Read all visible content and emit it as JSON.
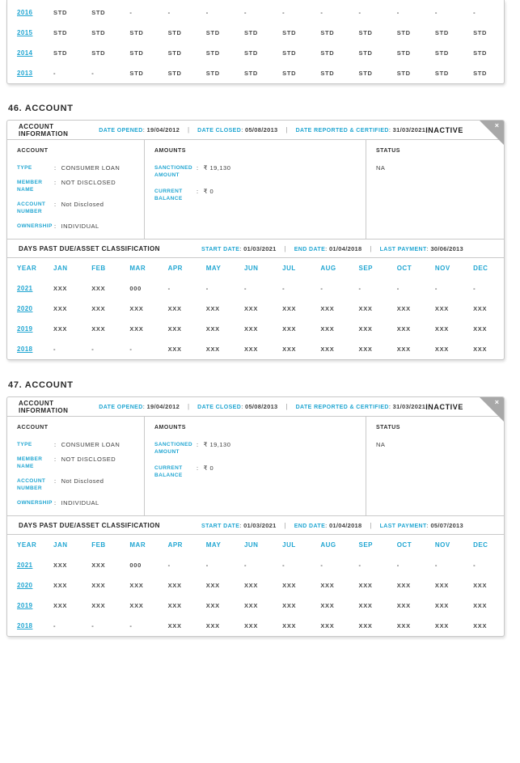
{
  "colors": {
    "accent": "#21a6d2",
    "text_dark": "#2b2b2b",
    "border": "#c9c9c9",
    "ribbon_gray": "#a8a8a8",
    "status_white": "#ffffff"
  },
  "labels": {
    "year_col": "YEAR"
  },
  "months": [
    "JAN",
    "FEB",
    "MAR",
    "APR",
    "MAY",
    "JUN",
    "JUL",
    "AUG",
    "SEP",
    "OCT",
    "NOV",
    "DEC"
  ],
  "history_table": {
    "rows": [
      {
        "year": "2016",
        "values": [
          "STD",
          "STD",
          "-",
          "-",
          "-",
          "-",
          "-",
          "-",
          "-",
          "-",
          "-",
          "-"
        ]
      },
      {
        "year": "2015",
        "values": [
          "STD",
          "STD",
          "STD",
          "STD",
          "STD",
          "STD",
          "STD",
          "STD",
          "STD",
          "STD",
          "STD",
          "STD"
        ]
      },
      {
        "year": "2014",
        "values": [
          "STD",
          "STD",
          "STD",
          "STD",
          "STD",
          "STD",
          "STD",
          "STD",
          "STD",
          "STD",
          "STD",
          "STD"
        ]
      },
      {
        "year": "2013",
        "values": [
          "-",
          "-",
          "STD",
          "STD",
          "STD",
          "STD",
          "STD",
          "STD",
          "STD",
          "STD",
          "STD",
          "STD"
        ]
      }
    ]
  },
  "accounts": [
    {
      "heading": "46. ACCOUNT",
      "info_title": "ACCOUNT INFORMATION",
      "status_badge": "INACTIVE",
      "close_icon": "×",
      "dates": [
        {
          "label": "DATE OPENED",
          "value": "19/04/2012"
        },
        {
          "label": "DATE CLOSED",
          "value": "05/08/2013"
        },
        {
          "label": "DATE REPORTED & CERTIFIED",
          "value": "31/03/2021"
        }
      ],
      "account_col": {
        "title": "ACCOUNT",
        "fields": [
          {
            "label": "TYPE",
            "value": "CONSUMER LOAN"
          },
          {
            "label": "MEMBER NAME",
            "value": "NOT DISCLOSED"
          },
          {
            "label": "ACCOUNT NUMBER",
            "value": "Not Disclosed"
          },
          {
            "label": "OWNERSHIP",
            "value": "INDIVIDUAL"
          }
        ]
      },
      "amounts_col": {
        "title": "AMOUNTS",
        "fields": [
          {
            "label": "SANCTIONED AMOUNT",
            "value": "₹ 19,130"
          },
          {
            "label": "CURRENT BALANCE",
            "value": "₹ 0"
          }
        ]
      },
      "status_col": {
        "title": "STATUS",
        "value": "NA"
      },
      "dpd": {
        "title": "DAYS PAST DUE/ASSET CLASSIFICATION",
        "dates": [
          {
            "label": "START DATE",
            "value": "01/03/2021"
          },
          {
            "label": "END DATE",
            "value": "01/04/2018"
          },
          {
            "label": "LAST PAYMENT",
            "value": "30/06/2013"
          }
        ],
        "rows": [
          {
            "year": "2021",
            "values": [
              "XXX",
              "XXX",
              "000",
              "-",
              "-",
              "-",
              "-",
              "-",
              "-",
              "-",
              "-",
              "-"
            ]
          },
          {
            "year": "2020",
            "values": [
              "XXX",
              "XXX",
              "XXX",
              "XXX",
              "XXX",
              "XXX",
              "XXX",
              "XXX",
              "XXX",
              "XXX",
              "XXX",
              "XXX"
            ]
          },
          {
            "year": "2019",
            "values": [
              "XXX",
              "XXX",
              "XXX",
              "XXX",
              "XXX",
              "XXX",
              "XXX",
              "XXX",
              "XXX",
              "XXX",
              "XXX",
              "XXX"
            ]
          },
          {
            "year": "2018",
            "values": [
              "-",
              "-",
              "-",
              "XXX",
              "XXX",
              "XXX",
              "XXX",
              "XXX",
              "XXX",
              "XXX",
              "XXX",
              "XXX"
            ]
          }
        ]
      }
    },
    {
      "heading": "47. ACCOUNT",
      "info_title": "ACCOUNT INFORMATION",
      "status_badge": "INACTIVE",
      "close_icon": "×",
      "dates": [
        {
          "label": "DATE OPENED",
          "value": "19/04/2012"
        },
        {
          "label": "DATE CLOSED",
          "value": "05/08/2013"
        },
        {
          "label": "DATE REPORTED & CERTIFIED",
          "value": "31/03/2021"
        }
      ],
      "account_col": {
        "title": "ACCOUNT",
        "fields": [
          {
            "label": "TYPE",
            "value": "CONSUMER LOAN"
          },
          {
            "label": "MEMBER NAME",
            "value": "NOT DISCLOSED"
          },
          {
            "label": "ACCOUNT NUMBER",
            "value": "Not Disclosed"
          },
          {
            "label": "OWNERSHIP",
            "value": "INDIVIDUAL"
          }
        ]
      },
      "amounts_col": {
        "title": "AMOUNTS",
        "fields": [
          {
            "label": "SANCTIONED AMOUNT",
            "value": "₹ 19,130"
          },
          {
            "label": "CURRENT BALANCE",
            "value": "₹ 0"
          }
        ]
      },
      "status_col": {
        "title": "STATUS",
        "value": "NA"
      },
      "dpd": {
        "title": "DAYS PAST DUE/ASSET CLASSIFICATION",
        "dates": [
          {
            "label": "START DATE",
            "value": "01/03/2021"
          },
          {
            "label": "END DATE",
            "value": "01/04/2018"
          },
          {
            "label": "LAST PAYMENT",
            "value": "05/07/2013"
          }
        ],
        "rows": [
          {
            "year": "2021",
            "values": [
              "XXX",
              "XXX",
              "000",
              "-",
              "-",
              "-",
              "-",
              "-",
              "-",
              "-",
              "-",
              "-"
            ]
          },
          {
            "year": "2020",
            "values": [
              "XXX",
              "XXX",
              "XXX",
              "XXX",
              "XXX",
              "XXX",
              "XXX",
              "XXX",
              "XXX",
              "XXX",
              "XXX",
              "XXX"
            ]
          },
          {
            "year": "2019",
            "values": [
              "XXX",
              "XXX",
              "XXX",
              "XXX",
              "XXX",
              "XXX",
              "XXX",
              "XXX",
              "XXX",
              "XXX",
              "XXX",
              "XXX"
            ]
          },
          {
            "year": "2018",
            "values": [
              "-",
              "-",
              "-",
              "XXX",
              "XXX",
              "XXX",
              "XXX",
              "XXX",
              "XXX",
              "XXX",
              "XXX",
              "XXX"
            ]
          }
        ]
      }
    }
  ]
}
